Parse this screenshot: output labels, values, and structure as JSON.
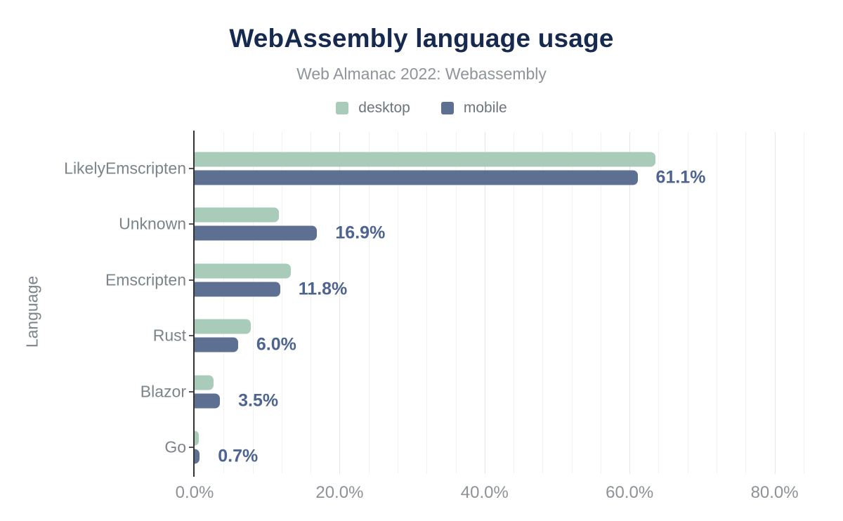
{
  "chart_data": {
    "type": "bar",
    "orientation": "horizontal",
    "title": "WebAssembly language usage",
    "subtitle": "Web Almanac 2022: Webassembly",
    "ylabel": "Language",
    "xlabel": "",
    "categories": [
      "LikelyEmscripten",
      "Unknown",
      "Emscripten",
      "Rust",
      "Blazor",
      "Go"
    ],
    "series": [
      {
        "name": "desktop",
        "color": "#a9cbb9",
        "values": [
          63.6,
          11.6,
          13.3,
          7.8,
          2.6,
          0.6
        ]
      },
      {
        "name": "mobile",
        "color": "#5d7092",
        "values": [
          61.1,
          16.9,
          11.8,
          6.0,
          3.5,
          0.7
        ]
      }
    ],
    "value_labels": [
      "61.1%",
      "16.9%",
      "11.8%",
      "6.0%",
      "3.5%",
      "0.7%"
    ],
    "value_labels_series": "mobile",
    "xlim": [
      0,
      87.5
    ],
    "x_ticks": [
      {
        "value": 0,
        "label": "0.0%"
      },
      {
        "value": 20,
        "label": "20.0%"
      },
      {
        "value": 40,
        "label": "40.0%"
      },
      {
        "value": 60,
        "label": "60.0%"
      },
      {
        "value": 80,
        "label": "80.0%"
      }
    ],
    "grid": {
      "minor_step": 4,
      "major_step": 20,
      "grid_on": true
    },
    "legend_position": "top"
  },
  "colors": {
    "title": "#16294e",
    "subtitle": "#8f949b",
    "legend_text": "#6e747c",
    "category_label": "#7d838b",
    "tick_label": "#8e9297",
    "value_label": "#4d6490",
    "axis_line": "#333333",
    "grid_minor": "#f2f2f2",
    "grid_major": "#e6e6e6",
    "desktop_bar": "#a9cbb9",
    "mobile_bar": "#5d7092"
  }
}
